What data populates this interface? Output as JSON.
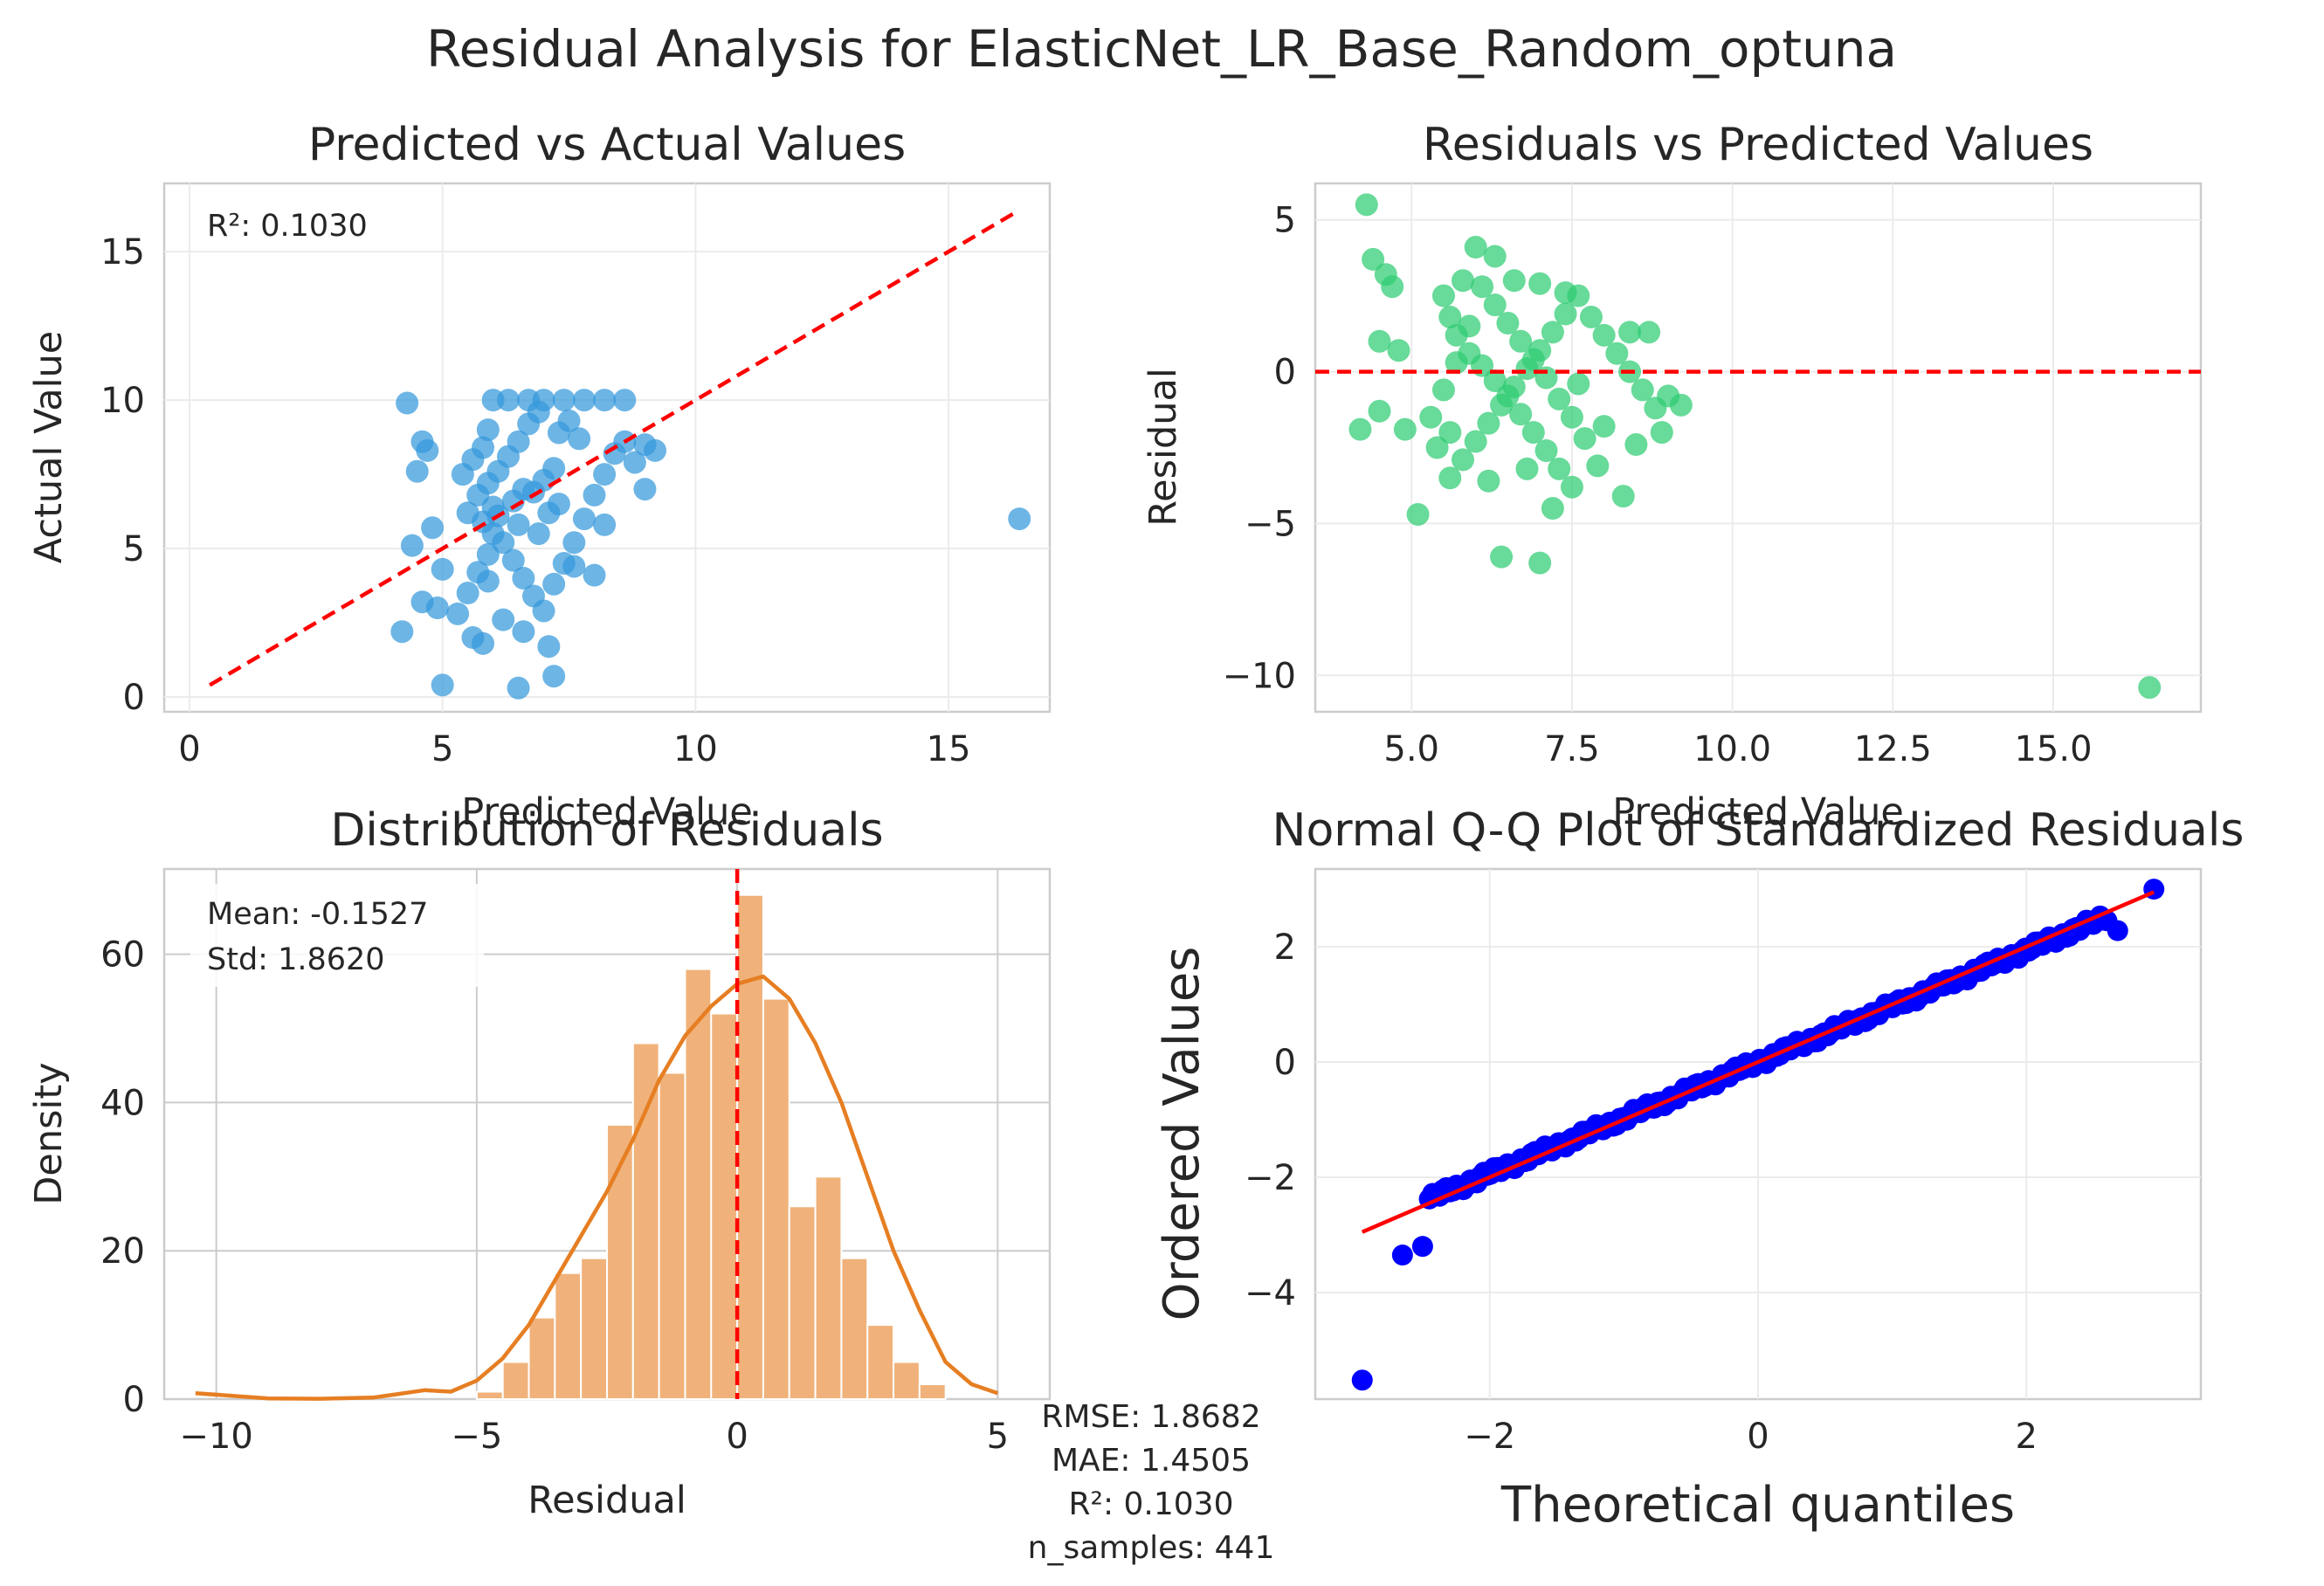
{
  "suptitle": "Residual Analysis for ElasticNet_LR_Base_Random_optuna",
  "colors": {
    "scatter_blue": "#3498db",
    "scatter_green": "#2ecc71",
    "hist_fill": "#f0b27a",
    "kde_line": "#e67e22",
    "ref_line": "#ff0000",
    "qq_points": "#0000ff",
    "grid": "#ebebeb",
    "spine": "#cccccc"
  },
  "panels": {
    "pva": {
      "title": "Predicted vs Actual Values",
      "xlabel": "Predicted Value",
      "ylabel": "Actual Value",
      "annotation": "R²: 0.1030"
    },
    "rvp": {
      "title": "Residuals vs Predicted Values",
      "xlabel": "Predicted Value",
      "ylabel": "Residual"
    },
    "hist": {
      "title": "Distribution of Residuals",
      "xlabel": "Residual",
      "ylabel": "Density",
      "annotation_mean": "Mean: -0.1527",
      "annotation_std": "Std: 1.8620"
    },
    "qq": {
      "title": "Normal Q-Q Plot of Standardized Residuals",
      "xlabel": "Theoretical quantiles",
      "ylabel": "Ordered Values"
    }
  },
  "stats_box": {
    "rmse": "RMSE: 1.8682",
    "mae": "MAE: 1.4505",
    "r2": "R²: 0.1030",
    "n": "n_samples: 441"
  },
  "chart_data": [
    {
      "type": "scatter",
      "title": "Predicted vs Actual Values",
      "xlabel": "Predicted Value",
      "ylabel": "Actual Value",
      "xlim": [
        -0.5,
        17.0
      ],
      "ylim": [
        -0.5,
        17.3
      ],
      "xticks": [
        0,
        5,
        10,
        15
      ],
      "yticks": [
        0,
        5,
        10,
        15
      ],
      "reference_line": {
        "x": [
          0.4,
          16.4
        ],
        "y": [
          0.4,
          16.4
        ],
        "style": "dashed"
      },
      "points": [
        [
          4.3,
          9.9
        ],
        [
          4.6,
          8.6
        ],
        [
          4.7,
          8.3
        ],
        [
          4.5,
          7.6
        ],
        [
          4.4,
          5.1
        ],
        [
          4.8,
          5.7
        ],
        [
          5.0,
          4.3
        ],
        [
          4.2,
          2.2
        ],
        [
          4.6,
          3.2
        ],
        [
          4.9,
          3.0
        ],
        [
          5.0,
          0.4
        ],
        [
          6.5,
          0.3
        ],
        [
          7.2,
          0.7
        ],
        [
          5.3,
          2.8
        ],
        [
          5.6,
          2.0
        ],
        [
          5.8,
          1.8
        ],
        [
          5.5,
          3.5
        ],
        [
          5.7,
          4.2
        ],
        [
          5.9,
          4.8
        ],
        [
          6.0,
          5.5
        ],
        [
          6.1,
          6.1
        ],
        [
          5.4,
          7.5
        ],
        [
          5.6,
          8.0
        ],
        [
          5.8,
          8.4
        ],
        [
          5.9,
          9.0
        ],
        [
          6.0,
          10.0
        ],
        [
          6.3,
          10.0
        ],
        [
          6.7,
          10.0
        ],
        [
          7.0,
          10.0
        ],
        [
          7.4,
          10.0
        ],
        [
          7.8,
          10.0
        ],
        [
          8.2,
          10.0
        ],
        [
          8.6,
          10.0
        ],
        [
          5.5,
          6.2
        ],
        [
          5.7,
          6.8
        ],
        [
          5.9,
          7.2
        ],
        [
          6.1,
          7.6
        ],
        [
          6.3,
          8.1
        ],
        [
          6.5,
          8.6
        ],
        [
          6.7,
          9.2
        ],
        [
          6.9,
          9.6
        ],
        [
          6.2,
          5.2
        ],
        [
          6.4,
          4.6
        ],
        [
          6.6,
          4.0
        ],
        [
          6.8,
          3.4
        ],
        [
          7.0,
          2.9
        ],
        [
          7.2,
          3.8
        ],
        [
          7.4,
          4.5
        ],
        [
          7.6,
          5.2
        ],
        [
          7.8,
          6.0
        ],
        [
          8.0,
          6.8
        ],
        [
          8.2,
          7.5
        ],
        [
          8.4,
          8.2
        ],
        [
          8.6,
          8.6
        ],
        [
          8.8,
          7.9
        ],
        [
          9.0,
          8.5
        ],
        [
          9.2,
          8.3
        ],
        [
          9.0,
          7.0
        ],
        [
          8.2,
          5.8
        ],
        [
          8.0,
          4.1
        ],
        [
          7.6,
          4.4
        ],
        [
          7.1,
          1.7
        ],
        [
          6.6,
          2.2
        ],
        [
          6.2,
          2.6
        ],
        [
          5.9,
          3.9
        ],
        [
          6.8,
          6.9
        ],
        [
          7.0,
          7.3
        ],
        [
          7.2,
          7.7
        ],
        [
          6.4,
          6.6
        ],
        [
          6.6,
          7.0
        ],
        [
          7.3,
          8.9
        ],
        [
          7.5,
          9.3
        ],
        [
          7.7,
          8.7
        ],
        [
          6.0,
          6.4
        ],
        [
          5.8,
          5.9
        ],
        [
          6.9,
          5.5
        ],
        [
          7.1,
          6.2
        ],
        [
          7.3,
          6.5
        ],
        [
          6.5,
          5.8
        ],
        [
          16.4,
          6.0
        ]
      ]
    },
    {
      "type": "scatter",
      "title": "Residuals vs Predicted Values",
      "xlabel": "Predicted Value",
      "ylabel": "Residual",
      "xlim": [
        3.5,
        17.3
      ],
      "ylim": [
        -11.2,
        6.2
      ],
      "xticks": [
        5.0,
        7.5,
        10.0,
        12.5,
        15.0
      ],
      "yticks": [
        -10,
        -5,
        0,
        5
      ],
      "reference_line": {
        "y": 0,
        "style": "dashed"
      },
      "points": [
        [
          4.3,
          5.5
        ],
        [
          4.4,
          3.7
        ],
        [
          4.6,
          3.2
        ],
        [
          4.7,
          2.8
        ],
        [
          4.5,
          1.0
        ],
        [
          4.8,
          0.7
        ],
        [
          4.2,
          -1.9
        ],
        [
          4.5,
          -1.3
        ],
        [
          4.9,
          -1.9
        ],
        [
          5.1,
          -4.7
        ],
        [
          6.0,
          4.1
        ],
        [
          6.3,
          3.8
        ],
        [
          5.8,
          3.0
        ],
        [
          5.5,
          2.5
        ],
        [
          5.6,
          1.8
        ],
        [
          5.7,
          1.2
        ],
        [
          5.9,
          0.6
        ],
        [
          6.1,
          0.2
        ],
        [
          6.3,
          -0.3
        ],
        [
          6.5,
          -0.8
        ],
        [
          6.7,
          -1.4
        ],
        [
          6.9,
          -2.0
        ],
        [
          7.1,
          -2.6
        ],
        [
          7.3,
          -3.2
        ],
        [
          7.5,
          -3.8
        ],
        [
          7.2,
          -4.5
        ],
        [
          6.4,
          -6.1
        ],
        [
          7.0,
          -6.3
        ],
        [
          5.6,
          -3.5
        ],
        [
          5.8,
          -2.9
        ],
        [
          6.0,
          -2.3
        ],
        [
          6.2,
          -1.7
        ],
        [
          6.4,
          -1.1
        ],
        [
          6.6,
          -0.5
        ],
        [
          6.8,
          0.1
        ],
        [
          7.0,
          0.7
        ],
        [
          7.2,
          1.3
        ],
        [
          7.4,
          1.9
        ],
        [
          7.6,
          2.5
        ],
        [
          7.8,
          1.8
        ],
        [
          8.0,
          1.2
        ],
        [
          8.2,
          0.6
        ],
        [
          8.4,
          0.0
        ],
        [
          8.6,
          -0.6
        ],
        [
          8.8,
          -1.2
        ],
        [
          9.0,
          -0.8
        ],
        [
          9.2,
          -1.1
        ],
        [
          8.9,
          -2.0
        ],
        [
          8.5,
          -2.4
        ],
        [
          8.3,
          -4.1
        ],
        [
          7.9,
          -3.1
        ],
        [
          7.7,
          -2.2
        ],
        [
          7.5,
          -1.5
        ],
        [
          7.3,
          -0.9
        ],
        [
          7.1,
          -0.2
        ],
        [
          6.9,
          0.4
        ],
        [
          6.7,
          1.0
        ],
        [
          6.5,
          1.6
        ],
        [
          6.3,
          2.2
        ],
        [
          6.1,
          2.8
        ],
        [
          5.9,
          1.5
        ],
        [
          5.7,
          0.3
        ],
        [
          5.5,
          -0.6
        ],
        [
          5.3,
          -1.5
        ],
        [
          5.4,
          -2.5
        ],
        [
          5.6,
          -2.0
        ],
        [
          6.6,
          3.0
        ],
        [
          7.0,
          2.9
        ],
        [
          7.4,
          2.6
        ],
        [
          8.4,
          1.3
        ],
        [
          8.7,
          1.3
        ],
        [
          6.2,
          -3.6
        ],
        [
          6.8,
          -3.2
        ],
        [
          7.6,
          -0.4
        ],
        [
          8.0,
          -1.8
        ],
        [
          16.5,
          -10.4
        ]
      ]
    },
    {
      "type": "bar",
      "title": "Distribution of Residuals",
      "xlabel": "Residual",
      "ylabel": "Density",
      "xlim": [
        -11.0,
        6.0
      ],
      "ylim": [
        0,
        71.5
      ],
      "xticks": [
        -10,
        -5,
        0,
        5
      ],
      "yticks": [
        0,
        20,
        40,
        60
      ],
      "bin_start": -5.0,
      "bin_width": 0.5,
      "values": [
        1,
        5,
        11,
        17,
        19,
        37,
        48,
        44,
        58,
        52,
        68,
        54,
        26,
        30,
        19,
        10,
        5,
        2,
        0,
        0
      ],
      "kde_line": {
        "x": [
          -10.4,
          -9,
          -8,
          -7,
          -6.5,
          -6,
          -5.5,
          -5,
          -4.5,
          -4,
          -3.5,
          -3,
          -2.5,
          -2,
          -1.5,
          -1,
          -0.5,
          0,
          0.5,
          1,
          1.5,
          2,
          2.5,
          3,
          3.5,
          4,
          4.5,
          5.0
        ],
        "y": [
          0.8,
          0.1,
          0.05,
          0.2,
          0.7,
          1.2,
          1.0,
          2.5,
          5.5,
          10,
          16,
          22,
          28,
          35,
          43,
          49,
          53,
          56,
          57,
          54,
          48,
          40,
          30,
          20,
          12,
          5,
          2,
          0.8
        ]
      },
      "mean_line": 0.0
    },
    {
      "type": "scatter",
      "title": "Normal Q-Q Plot of Standardized Residuals",
      "xlabel": "Theoretical quantiles",
      "ylabel": "Ordered Values",
      "xlim": [
        -3.3,
        3.3
      ],
      "ylim": [
        -5.85,
        3.35
      ],
      "xticks": [
        -2,
        0,
        2
      ],
      "yticks": [
        -4,
        -2,
        0,
        2
      ],
      "fit_line": {
        "x": [
          -2.95,
          2.95
        ],
        "y": [
          -2.95,
          2.95
        ]
      },
      "outliers": [
        [
          -2.95,
          -5.52
        ],
        [
          -2.65,
          -3.35
        ],
        [
          -2.5,
          -3.2
        ],
        [
          2.68,
          2.28
        ],
        [
          2.95,
          3.0
        ]
      ],
      "body": {
        "x_from": -2.45,
        "x_to": 2.6,
        "slope": 0.97,
        "intercept": 0.0
      }
    }
  ]
}
